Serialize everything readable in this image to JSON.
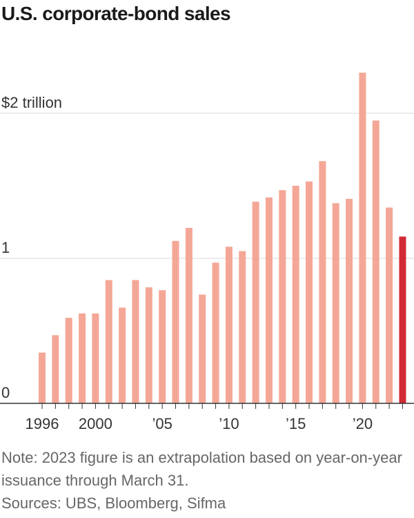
{
  "title": "U.S. corporate-bond sales",
  "note": "Note: 2023 figure is an extrapolation based on year-on-year issuance through March 31.",
  "sources": "Sources: UBS, Bloomberg, Sifma",
  "colors": {
    "bar": "#f4a797",
    "highlight": "#d12b36",
    "grid": "#d9d9d9",
    "axis": "#333333",
    "text": "#333333"
  },
  "chart_data": {
    "type": "bar",
    "title": "U.S. corporate-bond sales",
    "xlabel": "",
    "ylabel": "",
    "ylim": [
      0,
      2.3
    ],
    "y_unit": "trillion dollars",
    "ytick_values": [
      0,
      1,
      2
    ],
    "ytick_labels": [
      "0",
      "1",
      "$2 trillion"
    ],
    "xtick_years": [
      1996,
      2000,
      2005,
      2010,
      2015,
      2020
    ],
    "xtick_labels": [
      "1996",
      "2000",
      "’05",
      "’10",
      "’15",
      "’20"
    ],
    "grid": true,
    "highlight_category": 2023,
    "categories": [
      1996,
      1997,
      1998,
      1999,
      2000,
      2001,
      2002,
      2003,
      2004,
      2005,
      2006,
      2007,
      2008,
      2009,
      2010,
      2011,
      2012,
      2013,
      2014,
      2015,
      2016,
      2017,
      2018,
      2019,
      2020,
      2021,
      2022,
      2023
    ],
    "values": [
      0.35,
      0.47,
      0.59,
      0.62,
      0.62,
      0.85,
      0.66,
      0.85,
      0.8,
      0.78,
      1.12,
      1.21,
      0.75,
      0.97,
      1.08,
      1.05,
      1.39,
      1.42,
      1.47,
      1.5,
      1.53,
      1.67,
      1.38,
      1.41,
      2.28,
      1.95,
      1.35,
      1.15
    ]
  }
}
